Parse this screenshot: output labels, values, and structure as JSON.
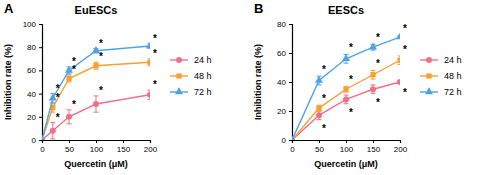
{
  "chart_data": [
    {
      "type": "line",
      "panel": "A",
      "title": "EuESCs",
      "x_label": "Quercetin (μM)",
      "y_label": "Inhibition rate (%)",
      "x": [
        0,
        20,
        50,
        100,
        200
      ],
      "xlim": [
        0,
        200
      ],
      "xticks": [
        0,
        50,
        100,
        150,
        200
      ],
      "ylim": [
        0,
        100
      ],
      "yticks": [
        0,
        20,
        40,
        60,
        80,
        100
      ],
      "legend": "right",
      "series": [
        {
          "name": "24 h",
          "color": "#f07088",
          "marker": "circle",
          "values": [
            0,
            8,
            20,
            31,
            39
          ],
          "errors": [
            0,
            7,
            6,
            7,
            4
          ]
        },
        {
          "name": "48 h",
          "color": "#f5a033",
          "marker": "square",
          "values": [
            0,
            28,
            53,
            64,
            67
          ],
          "errors": [
            0,
            4,
            3,
            3,
            3
          ]
        },
        {
          "name": "72 h",
          "color": "#4ea3e8",
          "marker": "triangle",
          "values": [
            0,
            36,
            60,
            77,
            81
          ],
          "errors": [
            0,
            4,
            3,
            2,
            2
          ]
        }
      ],
      "annotations": [
        {
          "text": "*",
          "x": 20,
          "y": 20
        },
        {
          "text": "*",
          "x": 50,
          "y": 31
        },
        {
          "text": "*",
          "x": 100,
          "y": 43
        },
        {
          "text": "*",
          "x": 200,
          "y": 48
        },
        {
          "text": "*",
          "x": 20,
          "y": 37
        },
        {
          "text": "*",
          "x": 50,
          "y": 61
        },
        {
          "text": "*",
          "x": 100,
          "y": 72
        },
        {
          "text": "*",
          "x": 200,
          "y": 75
        },
        {
          "text": "*",
          "x": 20,
          "y": 45
        },
        {
          "text": "*",
          "x": 50,
          "y": 68
        },
        {
          "text": "*",
          "x": 100,
          "y": 84
        },
        {
          "text": "*",
          "x": 200,
          "y": 88
        }
      ]
    },
    {
      "type": "line",
      "panel": "B",
      "title": "EESCs",
      "x_label": "Quercetin (μM)",
      "y_label": "Inhibition rate (%)",
      "x": [
        0,
        50,
        100,
        150,
        200
      ],
      "xlim": [
        0,
        200
      ],
      "xticks": [
        0,
        50,
        100,
        150,
        200
      ],
      "ylim": [
        0,
        80
      ],
      "yticks": [
        0,
        20,
        40,
        60,
        80
      ],
      "legend": "right",
      "series": [
        {
          "name": "24 h",
          "color": "#f07088",
          "marker": "circle",
          "values": [
            0,
            17,
            28,
            35,
            40
          ],
          "errors": [
            0,
            3,
            3,
            3,
            1
          ]
        },
        {
          "name": "48 h",
          "color": "#f5a033",
          "marker": "square",
          "values": [
            0,
            22,
            35,
            45,
            55
          ],
          "errors": [
            0,
            2,
            2,
            3,
            3
          ]
        },
        {
          "name": "72 h",
          "color": "#4ea3e8",
          "marker": "triangle",
          "values": [
            0,
            41,
            56,
            64,
            71
          ],
          "errors": [
            0,
            3,
            3,
            2,
            1
          ]
        }
      ],
      "annotations": [
        {
          "text": "*",
          "x": 50,
          "y": 8
        },
        {
          "text": "*",
          "x": 100,
          "y": 19
        },
        {
          "text": "*",
          "x": 150,
          "y": 26
        },
        {
          "text": "*",
          "x": 200,
          "y": 33
        },
        {
          "text": "*",
          "x": 50,
          "y": 29
        },
        {
          "text": "*",
          "x": 100,
          "y": 42
        },
        {
          "text": "*",
          "x": 150,
          "y": 53
        },
        {
          "text": "*",
          "x": 200,
          "y": 63
        },
        {
          "text": "*",
          "x": 50,
          "y": 49
        },
        {
          "text": "*",
          "x": 100,
          "y": 64
        },
        {
          "text": "*",
          "x": 150,
          "y": 71
        },
        {
          "text": "*",
          "x": 200,
          "y": 77
        }
      ]
    }
  ]
}
